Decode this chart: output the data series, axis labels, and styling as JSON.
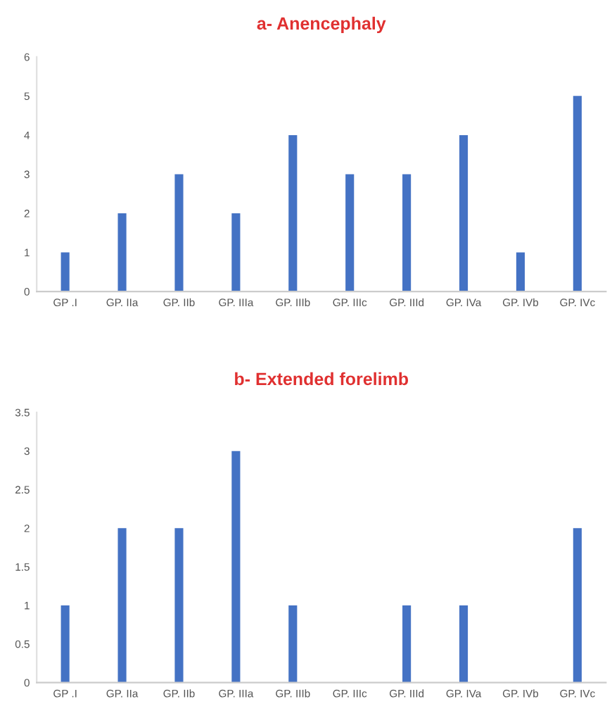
{
  "chart_data": [
    {
      "type": "bar",
      "title": "a- Anencephaly",
      "categories": [
        "GP .I",
        "GP. IIa",
        "GP. IIb",
        "GP. IIIa",
        "GP. IIIb",
        "GP. IIIc",
        "GP. IIId",
        "GP. IVa",
        "GP. IVb",
        "GP. IVc"
      ],
      "values": [
        1,
        2,
        3,
        2,
        4,
        3,
        3,
        4,
        1,
        5
      ],
      "color": "#4472c4",
      "ylim": [
        0,
        6
      ],
      "yticks": [
        0,
        1,
        2,
        3,
        4,
        5,
        6
      ],
      "grid": false
    },
    {
      "type": "bar",
      "title": "b- Extended forelimb",
      "categories": [
        "GP .I",
        "GP. IIa",
        "GP. IIb",
        "GP. IIIa",
        "GP. IIIb",
        "GP. IIIc",
        "GP. IIId",
        "GP. IVa",
        "GP. IVb",
        "GP. IVc"
      ],
      "values": [
        1,
        2,
        2,
        3,
        1,
        0,
        1,
        1,
        0,
        2
      ],
      "color": "#4472c4",
      "ylim": [
        0,
        3.5
      ],
      "yticks": [
        0,
        0.5,
        1,
        1.5,
        2,
        2.5,
        3,
        3.5
      ],
      "grid": false
    }
  ]
}
